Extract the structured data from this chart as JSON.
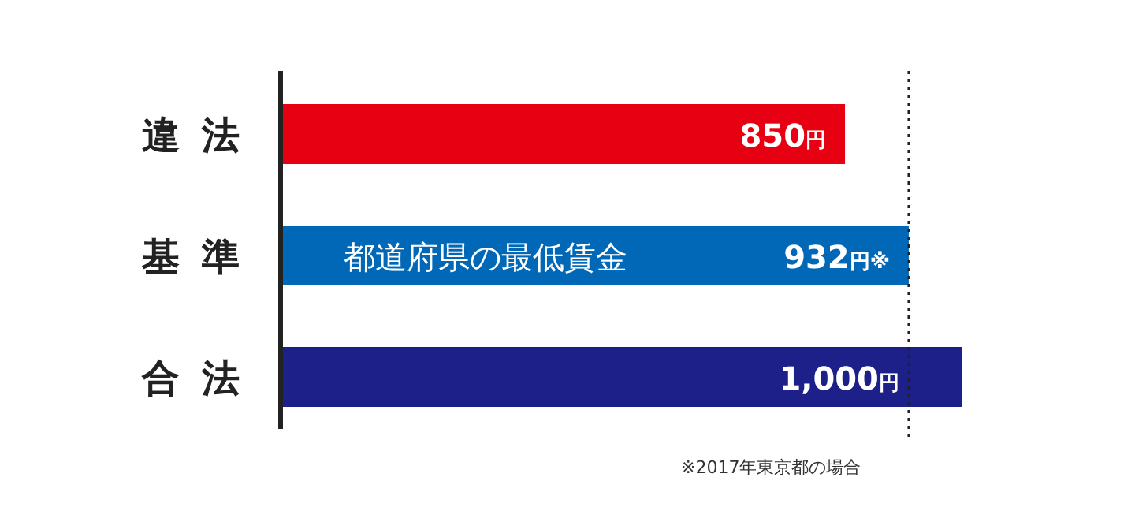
{
  "chart_data": {
    "type": "bar",
    "orientation": "horizontal",
    "categories": [
      "違法",
      "基準",
      "合法"
    ],
    "values": [
      850,
      932,
      1000
    ],
    "colors": [
      "#e60012",
      "#0068b7",
      "#1d2088"
    ],
    "xlim": [
      124,
      1000
    ],
    "value_labels": [
      "850円",
      "932円※",
      "1,000円"
    ],
    "ref_lines": [
      {
        "axis": "x",
        "value": 932,
        "color": "#222222",
        "line_style": "dotted"
      }
    ],
    "annotations": [
      "都道府県の最低賃金",
      "※2017年東京都の場合"
    ]
  }
}
